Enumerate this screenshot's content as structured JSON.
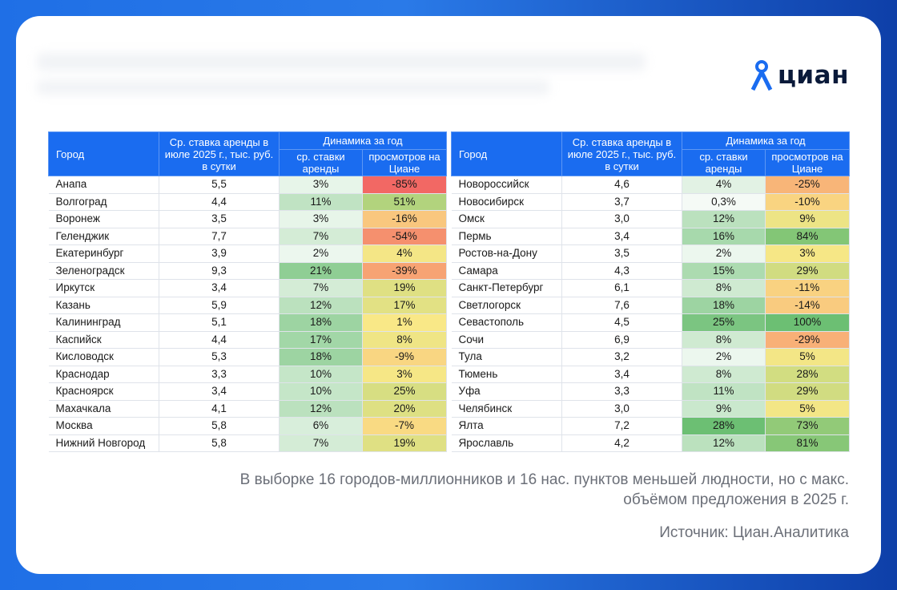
{
  "logo": {
    "text": "циан"
  },
  "chart_data": {
    "type": "table",
    "headers": {
      "city": "Город",
      "rate": "Ср. ставка аренды в июле 2025 г., тыс. руб. в сутки",
      "dynamics": "Динамика за год",
      "rate_change": "ср. ставки аренды",
      "views_change": "просмотров на Циане"
    },
    "left_rows": [
      {
        "city": "Анапа",
        "rate": "5,5",
        "rate_change": "3%",
        "views_change": "-85%"
      },
      {
        "city": "Волгоград",
        "rate": "4,4",
        "rate_change": "11%",
        "views_change": "51%"
      },
      {
        "city": "Воронеж",
        "rate": "3,5",
        "rate_change": "3%",
        "views_change": "-16%"
      },
      {
        "city": "Геленджик",
        "rate": "7,7",
        "rate_change": "7%",
        "views_change": "-54%"
      },
      {
        "city": "Екатеринбург",
        "rate": "3,9",
        "rate_change": "2%",
        "views_change": "4%"
      },
      {
        "city": "Зеленоградск",
        "rate": "9,3",
        "rate_change": "21%",
        "views_change": "-39%"
      },
      {
        "city": "Иркутск",
        "rate": "3,4",
        "rate_change": "7%",
        "views_change": "19%"
      },
      {
        "city": "Казань",
        "rate": "5,9",
        "rate_change": "12%",
        "views_change": "17%"
      },
      {
        "city": "Калининград",
        "rate": "5,1",
        "rate_change": "18%",
        "views_change": "1%"
      },
      {
        "city": "Каспийск",
        "rate": "4,4",
        "rate_change": "17%",
        "views_change": "8%"
      },
      {
        "city": "Кисловодск",
        "rate": "5,3",
        "rate_change": "18%",
        "views_change": "-9%"
      },
      {
        "city": "Краснодар",
        "rate": "3,3",
        "rate_change": "10%",
        "views_change": "3%"
      },
      {
        "city": "Красноярск",
        "rate": "3,4",
        "rate_change": "10%",
        "views_change": "25%"
      },
      {
        "city": "Махачкала",
        "rate": "4,1",
        "rate_change": "12%",
        "views_change": "20%"
      },
      {
        "city": "Москва",
        "rate": "5,8",
        "rate_change": "6%",
        "views_change": "-7%"
      },
      {
        "city": "Нижний Новгород",
        "rate": "5,8",
        "rate_change": "7%",
        "views_change": "19%"
      }
    ],
    "right_rows": [
      {
        "city": "Новороссийск",
        "rate": "4,6",
        "rate_change": "4%",
        "views_change": "-25%"
      },
      {
        "city": "Новосибирск",
        "rate": "3,7",
        "rate_change": "0,3%",
        "views_change": "-10%"
      },
      {
        "city": "Омск",
        "rate": "3,0",
        "rate_change": "12%",
        "views_change": "9%"
      },
      {
        "city": "Пермь",
        "rate": "3,4",
        "rate_change": "16%",
        "views_change": "84%"
      },
      {
        "city": "Ростов-на-Дону",
        "rate": "3,5",
        "rate_change": "2%",
        "views_change": "3%"
      },
      {
        "city": "Самара",
        "rate": "4,3",
        "rate_change": "15%",
        "views_change": "29%"
      },
      {
        "city": "Санкт-Петербург",
        "rate": "6,1",
        "rate_change": "8%",
        "views_change": "-11%"
      },
      {
        "city": "Светлогорск",
        "rate": "7,6",
        "rate_change": "18%",
        "views_change": "-14%"
      },
      {
        "city": "Севастополь",
        "rate": "4,5",
        "rate_change": "25%",
        "views_change": "100%"
      },
      {
        "city": "Сочи",
        "rate": "6,9",
        "rate_change": "8%",
        "views_change": "-29%"
      },
      {
        "city": "Тула",
        "rate": "3,2",
        "rate_change": "2%",
        "views_change": "5%"
      },
      {
        "city": "Тюмень",
        "rate": "3,4",
        "rate_change": "8%",
        "views_change": "28%"
      },
      {
        "city": "Уфа",
        "rate": "3,3",
        "rate_change": "11%",
        "views_change": "29%"
      },
      {
        "city": "Челябинск",
        "rate": "3,0",
        "rate_change": "9%",
        "views_change": "5%"
      },
      {
        "city": "Ялта",
        "rate": "7,2",
        "rate_change": "28%",
        "views_change": "73%"
      },
      {
        "city": "Ярославль",
        "rate": "4,2",
        "rate_change": "12%",
        "views_change": "81%"
      }
    ]
  },
  "footer": {
    "note_line1": "В выборке 16 городов-миллионников и 16 нас. пунктов меньшей людности, но с макс.",
    "note_line2": "объёмом предложения в 2025 г.",
    "source": "Источник: Циан.Аналитика"
  }
}
